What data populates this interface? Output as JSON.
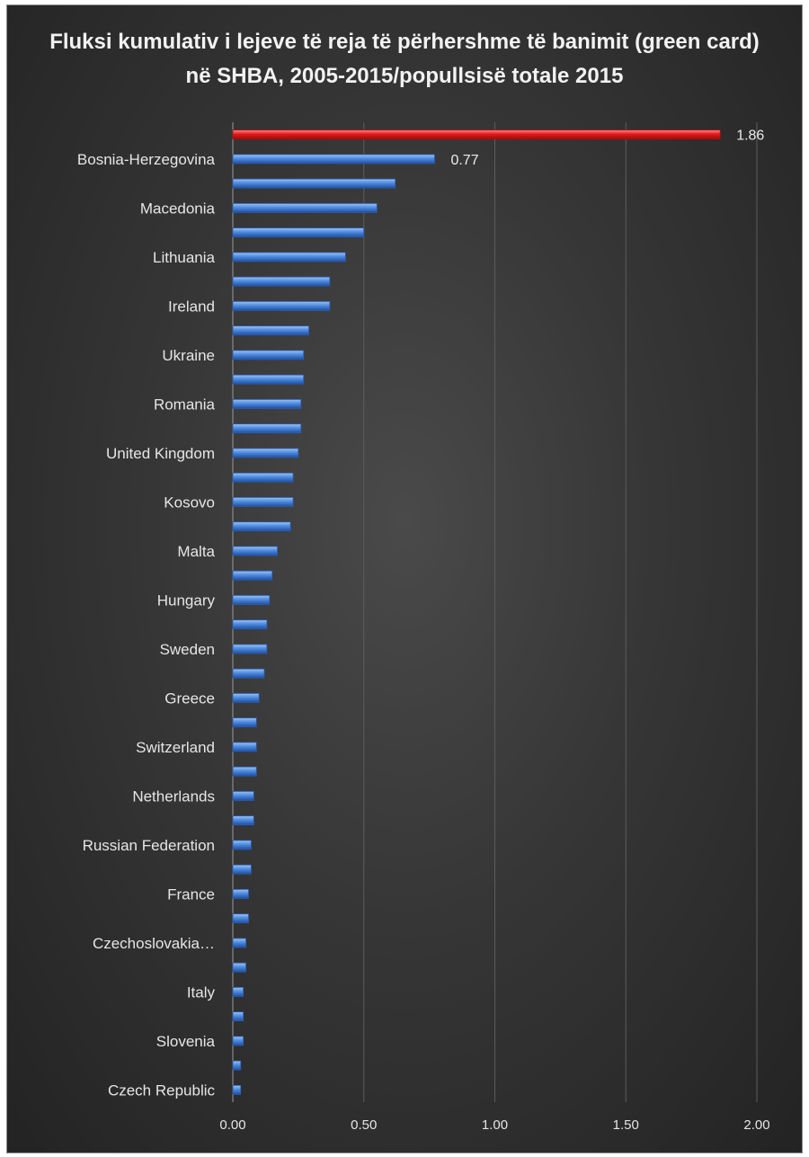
{
  "chart_data": {
    "type": "bar",
    "orientation": "horizontal",
    "title": "Fluksi kumulativ i lejeve të reja të përhershme të banimit (green card) në SHBA, 2005-2015/popullsisë totale 2015",
    "xlabel": "",
    "ylabel": "",
    "xlim": [
      0,
      2.0
    ],
    "x_ticks": [
      "0.00",
      "0.50",
      "1.00",
      "1.50",
      "2.00"
    ],
    "x_tick_values": [
      0,
      0.5,
      1.0,
      1.5,
      2.0
    ],
    "grid": true,
    "categories": [
      "",
      "Bosnia-Herzegovina",
      "",
      "Macedonia",
      "",
      "Lithuania",
      "",
      "Ireland",
      "",
      "Ukraine",
      "",
      "Romania",
      "",
      "United Kingdom",
      "",
      "Kosovo",
      "",
      "Malta",
      "",
      "Hungary",
      "",
      "Sweden",
      "",
      "Greece",
      "",
      "Switzerland",
      "",
      "Netherlands",
      "",
      "Russian Federation",
      "",
      "France",
      "",
      "Czechoslovakia…",
      "",
      "Italy",
      "",
      "Slovenia",
      "",
      "Czech Republic"
    ],
    "values": [
      1.86,
      0.77,
      0.62,
      0.55,
      0.5,
      0.43,
      0.37,
      0.37,
      0.29,
      0.27,
      0.27,
      0.26,
      0.26,
      0.25,
      0.23,
      0.23,
      0.22,
      0.17,
      0.15,
      0.14,
      0.13,
      0.13,
      0.12,
      0.1,
      0.09,
      0.09,
      0.09,
      0.08,
      0.08,
      0.07,
      0.07,
      0.06,
      0.06,
      0.05,
      0.05,
      0.04,
      0.04,
      0.04,
      0.03,
      0.03
    ],
    "highlight_index": 0,
    "colors": {
      "bar": "#4f8be0",
      "highlight": "#e8191b",
      "grid": "#5c5c5c",
      "axis": "#9a9a9a"
    },
    "data_labels": [
      {
        "index": 0,
        "text": "1.86"
      },
      {
        "index": 1,
        "text": "0.77"
      }
    ]
  }
}
